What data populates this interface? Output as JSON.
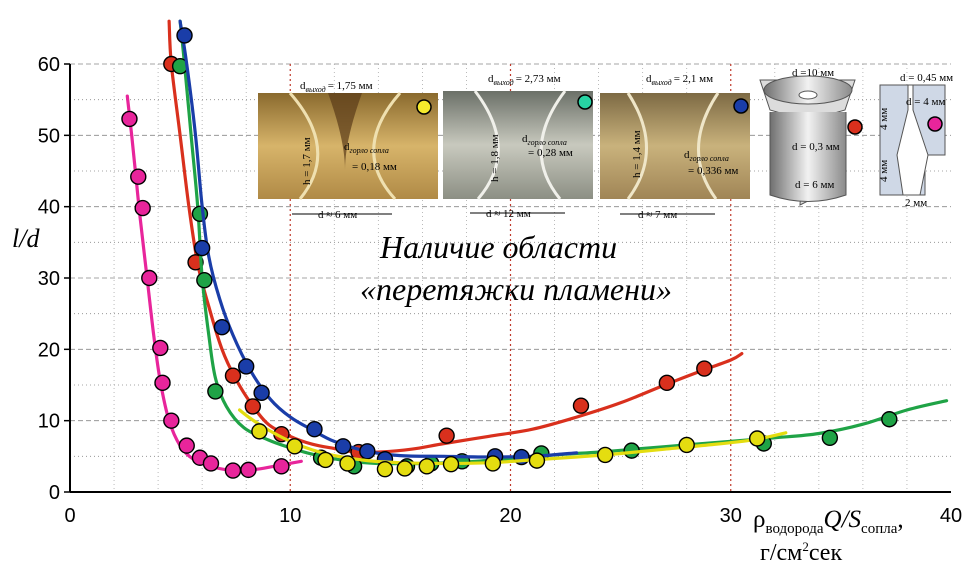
{
  "chart_data": {
    "type": "scatter",
    "xlim": [
      0,
      40
    ],
    "ylim": [
      0,
      60
    ],
    "x_ticks": [
      "0",
      "10",
      "20",
      "30",
      "40"
    ],
    "y_ticks": [
      "0",
      "10",
      "20",
      "30",
      "40",
      "50",
      "60"
    ],
    "ylabel": "l/d",
    "xlabel_parts": {
      "rho": "ρ",
      "rho_sub": "водорода",
      "q": "Q/S",
      "s_sub": "сопла",
      "comma": ",",
      "units_a": "г/см",
      "units_sup": "2",
      "units_b": "сек"
    },
    "grid": true,
    "vlines": [
      10,
      20,
      30
    ],
    "annotation_lines": [
      "Наличие области",
      "«перетяжки пламени»"
    ],
    "series": [
      {
        "color": "#e8259b",
        "curve": [
          [
            2.6,
            55.5
          ],
          [
            2.8,
            50
          ],
          [
            3.0,
            44
          ],
          [
            3.2,
            38
          ],
          [
            3.5,
            30
          ],
          [
            3.8,
            22
          ],
          [
            4.1,
            15.5
          ],
          [
            4.5,
            10
          ],
          [
            5.0,
            6.5
          ],
          [
            5.6,
            4.6
          ],
          [
            6.5,
            3.5
          ],
          [
            7.5,
            3.0
          ],
          [
            8.5,
            3.2
          ],
          [
            9.6,
            3.8
          ],
          [
            10.5,
            4.3
          ]
        ],
        "points": [
          [
            2.7,
            52.3
          ],
          [
            3.1,
            44.2
          ],
          [
            3.3,
            39.8
          ],
          [
            3.6,
            30.0
          ],
          [
            4.1,
            20.2
          ],
          [
            4.2,
            15.3
          ],
          [
            4.6,
            10.0
          ],
          [
            5.3,
            6.5
          ],
          [
            5.9,
            4.8
          ],
          [
            6.4,
            4.0
          ],
          [
            7.4,
            3.0
          ],
          [
            8.1,
            3.1
          ],
          [
            9.6,
            3.6
          ]
        ]
      },
      {
        "color": "#d9301d",
        "curve": [
          [
            4.5,
            66
          ],
          [
            4.6,
            60
          ],
          [
            5.0,
            50
          ],
          [
            5.4,
            40
          ],
          [
            5.8,
            32
          ],
          [
            6.3,
            26
          ],
          [
            6.9,
            20
          ],
          [
            7.5,
            16
          ],
          [
            8.2,
            12.5
          ],
          [
            9.0,
            9.5
          ],
          [
            10,
            7.8
          ],
          [
            11,
            6.7
          ],
          [
            12,
            6.1
          ],
          [
            13,
            5.6
          ],
          [
            14,
            5.6
          ],
          [
            15.5,
            6.0
          ],
          [
            17,
            6.8
          ],
          [
            19,
            7.8
          ],
          [
            21,
            8.8
          ],
          [
            23,
            10.5
          ],
          [
            25,
            12.5
          ],
          [
            27,
            15
          ],
          [
            28.5,
            16.8
          ],
          [
            30,
            18.5
          ],
          [
            30.5,
            19.4
          ]
        ],
        "points": [
          [
            4.6,
            60.0
          ],
          [
            5.7,
            32.2
          ],
          [
            7.4,
            16.3
          ],
          [
            8.3,
            12.0
          ],
          [
            9.6,
            8.1
          ],
          [
            13.1,
            5.6
          ],
          [
            17.1,
            7.9
          ],
          [
            23.2,
            12.1
          ],
          [
            27.1,
            15.3
          ],
          [
            28.8,
            17.3
          ]
        ]
      },
      {
        "color": "#1fa346",
        "curve": [
          [
            5.0,
            66
          ],
          [
            5.2,
            60
          ],
          [
            5.5,
            50
          ],
          [
            5.8,
            40
          ],
          [
            6.0,
            30
          ],
          [
            6.3,
            22
          ],
          [
            6.6,
            16
          ],
          [
            7.1,
            12
          ],
          [
            7.9,
            9
          ],
          [
            9,
            7.3
          ],
          [
            10,
            6.2
          ],
          [
            11,
            5.3
          ],
          [
            12.5,
            4.4
          ],
          [
            14,
            4.0
          ],
          [
            16,
            4.0
          ],
          [
            18,
            4.2
          ],
          [
            20,
            4.7
          ],
          [
            22,
            5.2
          ],
          [
            24,
            5.6
          ],
          [
            26,
            6.1
          ],
          [
            28,
            6.6
          ],
          [
            30,
            7.1
          ],
          [
            32,
            7.6
          ],
          [
            34,
            8.2
          ],
          [
            36,
            9.5
          ],
          [
            38,
            11.5
          ],
          [
            39.8,
            12.8
          ]
        ],
        "points": [
          [
            5.0,
            59.7
          ],
          [
            5.9,
            39.0
          ],
          [
            6.1,
            29.7
          ],
          [
            6.6,
            14.1
          ],
          [
            11.4,
            4.8
          ],
          [
            12.9,
            3.6
          ],
          [
            15.3,
            3.6
          ],
          [
            16.4,
            4.0
          ],
          [
            17.8,
            4.3
          ],
          [
            21.4,
            5.4
          ],
          [
            25.5,
            5.8
          ],
          [
            31.5,
            6.8
          ],
          [
            34.5,
            7.6
          ],
          [
            37.2,
            10.2
          ]
        ]
      },
      {
        "color": "#1a3da8",
        "curve": [
          [
            5.0,
            66
          ],
          [
            5.3,
            60
          ],
          [
            5.7,
            50
          ],
          [
            6.0,
            40
          ],
          [
            6.3,
            33
          ],
          [
            6.8,
            27
          ],
          [
            7.4,
            22
          ],
          [
            8.2,
            17
          ],
          [
            9.1,
            13
          ],
          [
            10,
            10.5
          ],
          [
            11,
            8.7
          ],
          [
            12,
            7.1
          ],
          [
            13.5,
            5.7
          ],
          [
            15,
            5.1
          ],
          [
            17,
            5.0
          ],
          [
            19,
            4.9
          ],
          [
            21,
            5.0
          ],
          [
            23,
            5.5
          ]
        ],
        "points": [
          [
            5.2,
            64.0
          ],
          [
            6.0,
            34.2
          ],
          [
            6.9,
            23.1
          ],
          [
            8.0,
            17.6
          ],
          [
            8.7,
            13.9
          ],
          [
            11.1,
            8.8
          ],
          [
            12.4,
            6.4
          ],
          [
            13.5,
            5.7
          ],
          [
            14.3,
            4.6
          ],
          [
            19.3,
            5.0
          ],
          [
            20.5,
            4.9
          ]
        ]
      },
      {
        "color": "#e4dd10",
        "curve": [
          [
            7.7,
            11.5
          ],
          [
            8.2,
            10.3
          ],
          [
            9,
            8.7
          ],
          [
            10,
            7.1
          ],
          [
            11,
            5.9
          ],
          [
            12,
            5.1
          ],
          [
            13.5,
            4.4
          ],
          [
            15,
            4.1
          ],
          [
            17,
            4.0
          ],
          [
            19,
            4.1
          ],
          [
            21,
            4.5
          ],
          [
            23,
            4.9
          ],
          [
            25,
            5.4
          ],
          [
            27,
            6.0
          ],
          [
            29,
            6.6
          ],
          [
            31,
            7.3
          ],
          [
            32.5,
            8.3
          ]
        ],
        "points": [
          [
            8.6,
            8.5
          ],
          [
            10.2,
            6.4
          ],
          [
            11.6,
            4.5
          ],
          [
            12.6,
            4.0
          ],
          [
            14.3,
            3.2
          ],
          [
            15.2,
            3.3
          ],
          [
            16.2,
            3.6
          ],
          [
            17.3,
            3.9
          ],
          [
            19.2,
            4.0
          ],
          [
            21.2,
            4.4
          ],
          [
            24.3,
            5.2
          ],
          [
            28.0,
            6.6
          ],
          [
            31.2,
            7.5
          ]
        ]
      }
    ],
    "photos": [
      {
        "top": "d",
        "top_sub": "выход",
        "top_val": "= 1,75 мм",
        "h_label": "h = 1,7 мм",
        "mid": "d",
        "mid_sub": "горло сопла",
        "mid_val": "= 0,18 мм",
        "bottom": "d ≈ 6 мм",
        "marker": "#f5ea2c"
      },
      {
        "top": "d",
        "top_sub": "выход",
        "top_val": "= 2,73 мм",
        "h_label": "h = 1,8 мм",
        "mid": "d",
        "mid_sub": "горло сопла",
        "mid_val": "= 0,28 мм",
        "bottom": "d ≈ 12 мм",
        "marker": "#27d3a3"
      },
      {
        "top": "d",
        "top_sub": "выход",
        "top_val": "= 2,1 мм",
        "h_label": "h = 1,4 мм",
        "mid": "d",
        "mid_sub": "горло сопла",
        "mid_val": "= 0,336 мм",
        "bottom": "d ≈ 7 мм",
        "marker": "#1a3da8"
      }
    ],
    "nozzle1": {
      "top": "d =10 мм",
      "mid": "d = 0,3 мм",
      "bottom": "d = 6 мм",
      "marker": "#d9301d"
    },
    "nozzle2": {
      "top": "d = 0,45 мм",
      "top2": "d = 4 мм",
      "side": "4 мм",
      "side2": "4 мм",
      "bottom": "2 мм",
      "marker": "#e8259b"
    }
  }
}
